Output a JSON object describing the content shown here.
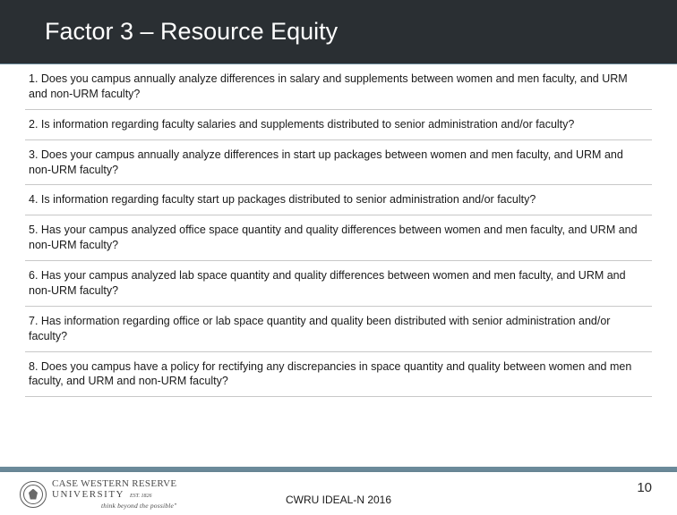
{
  "header": {
    "title": "Factor 3 – Resource Equity",
    "bg_color": "#2a2f33",
    "title_color": "#ffffff",
    "title_fontsize": 27
  },
  "questions": [
    "1. Does you campus annually analyze differences in salary and supplements between women and men faculty, and URM and non-URM faculty?",
    "2. Is information regarding faculty salaries and supplements distributed to senior administration and/or faculty?",
    "3. Does your campus annually analyze differences in start up packages between women and men faculty, and URM and non-URM faculty?",
    "4. Is information regarding faculty start up packages distributed to senior administration and/or faculty?",
    "5. Has your campus analyzed office space quantity and quality differences between women and men faculty, and URM and non-URM faculty?",
    "6. Has your campus analyzed lab space quantity and quality differences between women and men faculty, and URM and non-URM faculty?",
    "7. Has information regarding office or lab space quantity and quality been distributed with senior administration and/or faculty?",
    "8. Does you campus have a policy for rectifying any discrepancies in space quantity and quality between women and men faculty, and URM and non-URM faculty?"
  ],
  "styling": {
    "row_border_color": "#c8c8c8",
    "text_color": "#1a1a1a",
    "question_fontsize": 12.5,
    "accent_bar_color": "#6b8a9a"
  },
  "footer": {
    "logo_line1": "CASE WESTERN RESERVE",
    "logo_line2": "UNIVERSITY",
    "logo_est": "EST. 1826",
    "logo_tagline": "think beyond the possible\"",
    "center_text": "CWRU IDEAL-N 2016",
    "page_number": "10"
  }
}
